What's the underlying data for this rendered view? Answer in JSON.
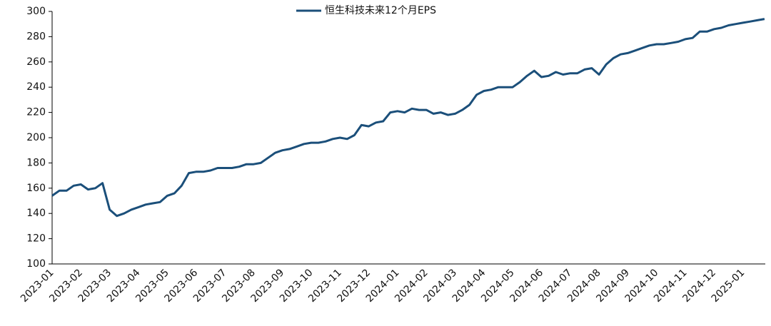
{
  "chart_data": {
    "type": "line",
    "categories": [
      "2023-01",
      null,
      null,
      null,
      "2023-02",
      null,
      null,
      null,
      "2023-03",
      null,
      null,
      null,
      "2023-04",
      null,
      null,
      null,
      "2023-05",
      null,
      null,
      null,
      "2023-06",
      null,
      null,
      null,
      "2023-07",
      null,
      null,
      null,
      "2023-08",
      null,
      null,
      null,
      "2023-09",
      null,
      null,
      null,
      "2023-10",
      null,
      null,
      null,
      "2023-11",
      null,
      null,
      null,
      "2023-12",
      null,
      null,
      null,
      "2024-01",
      null,
      null,
      null,
      "2024-02",
      null,
      null,
      null,
      "2024-03",
      null,
      null,
      null,
      "2024-04",
      null,
      null,
      null,
      "2024-05",
      null,
      null,
      null,
      "2024-06",
      null,
      null,
      null,
      "2024-07",
      null,
      null,
      null,
      "2024-08",
      null,
      null,
      null,
      "2024-09",
      null,
      null,
      null,
      "2024-10",
      null,
      null,
      null,
      "2024-11",
      null,
      null,
      null,
      "2024-12",
      null,
      null,
      null,
      "2025-01",
      null,
      null,
      null
    ],
    "series": [
      {
        "name": "恒生科技未来12个月EPS",
        "color": "#1b4f7a",
        "values": [
          154,
          158,
          158,
          162,
          163,
          159,
          160,
          164,
          143,
          138,
          140,
          143,
          145,
          147,
          148,
          149,
          154,
          156,
          162,
          172,
          173,
          173,
          174,
          176,
          176,
          176,
          177,
          179,
          179,
          180,
          184,
          188,
          190,
          191,
          193,
          195,
          196,
          196,
          197,
          199,
          200,
          199,
          202,
          210,
          209,
          212,
          213,
          220,
          221,
          220,
          223,
          222,
          222,
          219,
          220,
          218,
          219,
          222,
          226,
          234,
          237,
          238,
          240,
          240,
          240,
          244,
          249,
          253,
          248,
          249,
          252,
          250,
          251,
          251,
          254,
          255,
          250,
          258,
          263,
          266,
          267,
          269,
          271,
          273,
          274,
          274,
          275,
          276,
          278,
          279,
          284,
          284,
          286,
          287,
          289,
          290,
          291,
          292,
          293,
          294
        ]
      }
    ],
    "ylim": [
      100,
      300
    ],
    "yticks": [
      100,
      120,
      140,
      160,
      180,
      200,
      220,
      240,
      260,
      280,
      300
    ],
    "grid": false
  }
}
